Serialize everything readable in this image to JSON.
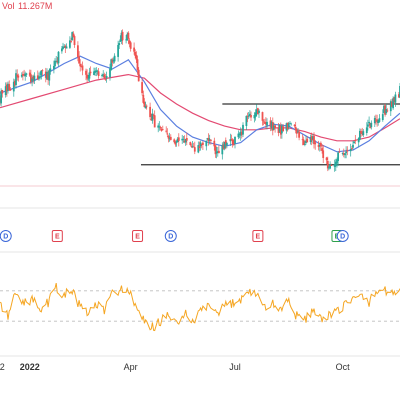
{
  "volume_indicator": {
    "label": "Vol",
    "value": "11.267M"
  },
  "colors": {
    "up": "#26a69a",
    "down": "#ef5350",
    "ma_fast": "#5b7fe0",
    "ma_slow": "#e34a72",
    "oscillator": "#f5a623",
    "support_resistance": "#333333",
    "event_earnings": "#e0414e",
    "event_dividend": "#3a66d8",
    "event_e_green": "#2da04b"
  },
  "events": [
    {
      "date": "2021-12-13",
      "letter": "D",
      "type": "dividend"
    },
    {
      "date": "2022-01-27",
      "letter": "E",
      "type": "earnings"
    },
    {
      "date": "2022-04-07",
      "letter": "E",
      "type": "earnings"
    },
    {
      "date": "2022-05-06",
      "letter": "D",
      "type": "dividend"
    },
    {
      "date": "2022-07-21",
      "letter": "E",
      "type": "earnings"
    },
    {
      "date": "2022-09-28",
      "letter": "E",
      "type": "earnings_green"
    },
    {
      "date": "2022-10-03",
      "letter": "D",
      "type": "dividend"
    }
  ],
  "chart_data": {
    "type": "candlestick",
    "x_axis": {
      "start": "2021-12-08",
      "end": "2022-11-22",
      "tick_labels": [
        {
          "date": "2021-12-10",
          "text": "2",
          "bold": false
        },
        {
          "date": "2022-01-03",
          "text": "2022",
          "bold": true
        },
        {
          "date": "2022-04-01",
          "text": "Apr",
          "bold": false
        },
        {
          "date": "2022-07-01",
          "text": "Jul",
          "bold": false
        },
        {
          "date": "2022-10-03",
          "text": "Oct",
          "bold": false
        }
      ]
    },
    "price_range": [
      0,
      100
    ],
    "price_series": [
      [
        "2021-12-08",
        54
      ],
      [
        "2021-12-15",
        58
      ],
      [
        "2021-12-22",
        64
      ],
      [
        "2021-12-29",
        66
      ],
      [
        "2022-01-05",
        62
      ],
      [
        "2022-01-12",
        67
      ],
      [
        "2022-01-19",
        64
      ],
      [
        "2022-01-26",
        74
      ],
      [
        "2022-02-02",
        82
      ],
      [
        "2022-02-09",
        88
      ],
      [
        "2022-02-16",
        72
      ],
      [
        "2022-02-23",
        65
      ],
      [
        "2022-03-02",
        66
      ],
      [
        "2022-03-09",
        64
      ],
      [
        "2022-03-16",
        73
      ],
      [
        "2022-03-23",
        87
      ],
      [
        "2022-03-30",
        85
      ],
      [
        "2022-04-06",
        72
      ],
      [
        "2022-04-13",
        48
      ],
      [
        "2022-04-20",
        42
      ],
      [
        "2022-04-27",
        36
      ],
      [
        "2022-05-04",
        31
      ],
      [
        "2022-05-11",
        28
      ],
      [
        "2022-05-18",
        32
      ],
      [
        "2022-05-25",
        24
      ],
      [
        "2022-06-01",
        28
      ],
      [
        "2022-06-08",
        31
      ],
      [
        "2022-06-15",
        22
      ],
      [
        "2022-06-22",
        27
      ],
      [
        "2022-06-29",
        30
      ],
      [
        "2022-07-06",
        33
      ],
      [
        "2022-07-13",
        44
      ],
      [
        "2022-07-20",
        47
      ],
      [
        "2022-07-27",
        40
      ],
      [
        "2022-08-03",
        37
      ],
      [
        "2022-08-10",
        36
      ],
      [
        "2022-08-17",
        40
      ],
      [
        "2022-08-24",
        34
      ],
      [
        "2022-08-31",
        30
      ],
      [
        "2022-09-07",
        32
      ],
      [
        "2022-09-14",
        24
      ],
      [
        "2022-09-21",
        17
      ],
      [
        "2022-09-28",
        20
      ],
      [
        "2022-10-05",
        25
      ],
      [
        "2022-10-12",
        28
      ],
      [
        "2022-10-19",
        34
      ],
      [
        "2022-10-26",
        38
      ],
      [
        "2022-11-02",
        43
      ],
      [
        "2022-11-09",
        47
      ],
      [
        "2022-11-16",
        52
      ],
      [
        "2022-11-22",
        57
      ]
    ],
    "reference_lines": [
      {
        "name": "resistance",
        "value": 50,
        "from": "2022-06-20",
        "to": "2022-11-22"
      },
      {
        "name": "support",
        "value": 17,
        "from": "2022-04-10",
        "to": "2022-11-22"
      }
    ],
    "ma_fast": [
      [
        "2021-12-08",
        56
      ],
      [
        "2022-01-05",
        62
      ],
      [
        "2022-02-02",
        72
      ],
      [
        "2022-02-16",
        76
      ],
      [
        "2022-03-02",
        72
      ],
      [
        "2022-03-16",
        69
      ],
      [
        "2022-03-30",
        74
      ],
      [
        "2022-04-13",
        62
      ],
      [
        "2022-04-27",
        47
      ],
      [
        "2022-05-11",
        38
      ],
      [
        "2022-05-25",
        32
      ],
      [
        "2022-06-08",
        29
      ],
      [
        "2022-06-22",
        27
      ],
      [
        "2022-07-06",
        29
      ],
      [
        "2022-07-20",
        36
      ],
      [
        "2022-08-03",
        39
      ],
      [
        "2022-08-17",
        38
      ],
      [
        "2022-08-31",
        33
      ],
      [
        "2022-09-14",
        28
      ],
      [
        "2022-09-28",
        24
      ],
      [
        "2022-10-12",
        25
      ],
      [
        "2022-10-26",
        30
      ],
      [
        "2022-11-09",
        38
      ],
      [
        "2022-11-22",
        45
      ]
    ],
    "ma_slow": [
      [
        "2021-12-08",
        48
      ],
      [
        "2022-01-05",
        53
      ],
      [
        "2022-02-02",
        58
      ],
      [
        "2022-03-02",
        63
      ],
      [
        "2022-03-30",
        66
      ],
      [
        "2022-04-13",
        64
      ],
      [
        "2022-04-27",
        56
      ],
      [
        "2022-05-11",
        50
      ],
      [
        "2022-05-25",
        45
      ],
      [
        "2022-06-08",
        41
      ],
      [
        "2022-06-22",
        38
      ],
      [
        "2022-07-06",
        36
      ],
      [
        "2022-07-20",
        36
      ],
      [
        "2022-08-03",
        37
      ],
      [
        "2022-08-17",
        37
      ],
      [
        "2022-08-31",
        35
      ],
      [
        "2022-09-14",
        32
      ],
      [
        "2022-09-28",
        30
      ],
      [
        "2022-10-12",
        30
      ],
      [
        "2022-10-26",
        32
      ],
      [
        "2022-11-09",
        37
      ],
      [
        "2022-11-22",
        42
      ]
    ],
    "oscillator": {
      "range": [
        0,
        100
      ],
      "reference_lines": [
        70,
        30
      ],
      "values": [
        [
          "2021-12-08",
          55
        ],
        [
          "2021-12-15",
          35
        ],
        [
          "2021-12-22",
          72
        ],
        [
          "2021-12-29",
          52
        ],
        [
          "2022-01-05",
          60
        ],
        [
          "2022-01-12",
          40
        ],
        [
          "2022-01-19",
          55
        ],
        [
          "2022-01-26",
          74
        ],
        [
          "2022-02-02",
          64
        ],
        [
          "2022-02-09",
          71
        ],
        [
          "2022-02-16",
          48
        ],
        [
          "2022-02-23",
          40
        ],
        [
          "2022-03-02",
          52
        ],
        [
          "2022-03-09",
          44
        ],
        [
          "2022-03-16",
          66
        ],
        [
          "2022-03-23",
          73
        ],
        [
          "2022-03-30",
          70
        ],
        [
          "2022-04-06",
          46
        ],
        [
          "2022-04-13",
          28
        ],
        [
          "2022-04-20",
          22
        ],
        [
          "2022-04-27",
          30
        ],
        [
          "2022-05-04",
          36
        ],
        [
          "2022-05-11",
          28
        ],
        [
          "2022-05-18",
          40
        ],
        [
          "2022-05-25",
          26
        ],
        [
          "2022-06-01",
          44
        ],
        [
          "2022-06-08",
          52
        ],
        [
          "2022-06-15",
          36
        ],
        [
          "2022-06-22",
          50
        ],
        [
          "2022-06-29",
          54
        ],
        [
          "2022-07-06",
          60
        ],
        [
          "2022-07-13",
          70
        ],
        [
          "2022-07-20",
          66
        ],
        [
          "2022-07-27",
          48
        ],
        [
          "2022-08-03",
          52
        ],
        [
          "2022-08-10",
          46
        ],
        [
          "2022-08-17",
          58
        ],
        [
          "2022-08-24",
          36
        ],
        [
          "2022-08-31",
          32
        ],
        [
          "2022-09-07",
          46
        ],
        [
          "2022-09-14",
          30
        ],
        [
          "2022-09-21",
          36
        ],
        [
          "2022-09-28",
          42
        ],
        [
          "2022-10-05",
          54
        ],
        [
          "2022-10-12",
          58
        ],
        [
          "2022-10-19",
          62
        ],
        [
          "2022-10-26",
          56
        ],
        [
          "2022-11-02",
          68
        ],
        [
          "2022-11-09",
          72
        ],
        [
          "2022-11-16",
          66
        ],
        [
          "2022-11-22",
          75
        ]
      ]
    }
  }
}
